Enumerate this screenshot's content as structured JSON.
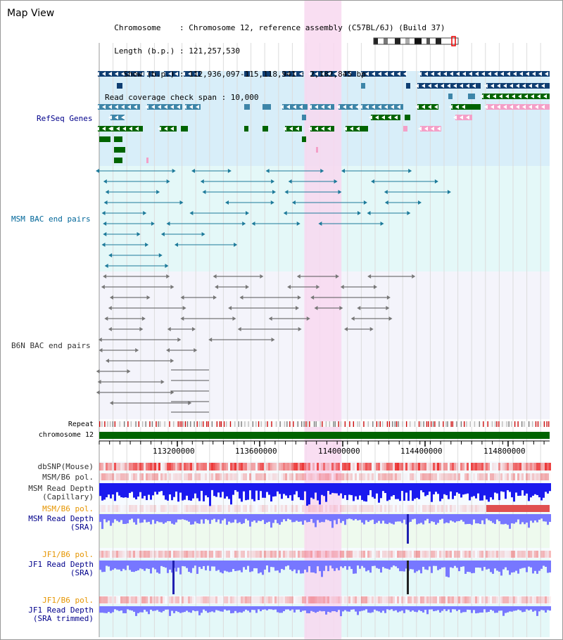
{
  "header": {
    "title": "Map View",
    "info_lines": [
      "  Chromosome    : Chromosome 12, reference assembly (C57BL/6J) (Build 37)",
      "  Length (b.p.) : 121,257,530",
      "    Show (b.p.) : 112,936,097-115,118,941 : 2,182,845 bp",
      "Read coverage check span : 10,000"
    ]
  },
  "colors": {
    "refseq_bg": "#d8eef9",
    "msm_bg": "#e4f8f8",
    "b6n_bg": "#f4f4fb",
    "highlight": "#f8d8f0",
    "refseq_label": "#00008b",
    "msm_label": "#006699",
    "b6n_label": "#333333",
    "pol_label": "#e69500",
    "depth_label": "#00008b",
    "chromosome_bar": "#006400",
    "depth_fill": "#7777ff"
  },
  "tracks": {
    "refseq": "RefSeq Genes",
    "msm_bac": "MSM BAC end pairs",
    "b6n_bac": "B6N BAC end pairs",
    "repeat": "Repeat",
    "chromosome": "chromosome 12",
    "dbsnp": "dbSNP(Mouse)",
    "msm_b6_pol_1": "MSM/B6 pol.",
    "msm_read_depth_cap": [
      "MSM Read Depth",
      "(Capillary)"
    ],
    "msm_b6_pol_2": "MSM/B6 pol.",
    "msm_read_depth_sra": [
      "MSM Read Depth",
      "(SRA)"
    ],
    "jf1_b6_pol_1": "JF1/B6 pol.",
    "jf1_read_depth_sra": [
      "JF1 Read Depth",
      "(SRA)"
    ],
    "jf1_b6_pol_2": "JF1/B6 pol.",
    "jf1_read_depth_trim": [
      "JF1 Read Depth",
      "(SRA trimmed)"
    ]
  },
  "axis": {
    "ticks": [
      "113200000",
      "113600000",
      "114000000",
      "114400000",
      "114800000"
    ]
  },
  "view": {
    "start": 112936097,
    "end": 115118941,
    "highlight_start": 113930000,
    "highlight_end": 114110000
  }
}
